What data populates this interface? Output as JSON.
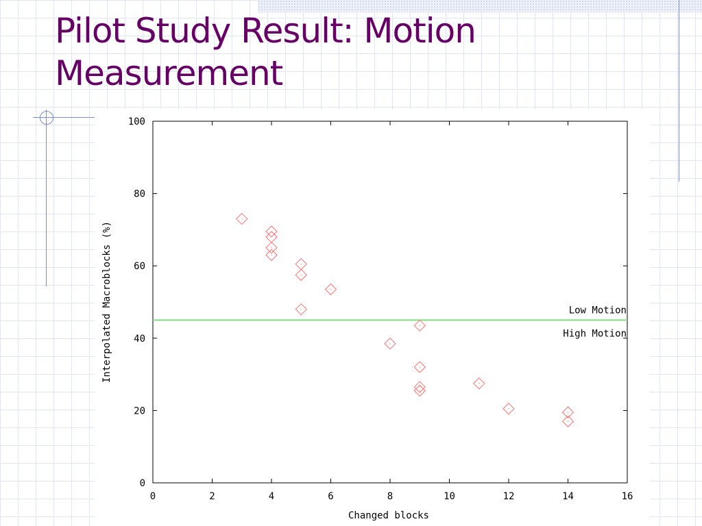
{
  "slide": {
    "title_line1": "Pilot Study Result: Motion",
    "title_line2": "Measurement"
  },
  "chart_data": {
    "type": "scatter",
    "xlabel": "Changed blocks",
    "ylabel": "Interpolated Macroblocks (%)",
    "xlim": [
      0,
      16
    ],
    "ylim": [
      0,
      100
    ],
    "x_ticks": [
      "0",
      "2",
      "4",
      "6",
      "8",
      "10",
      "12",
      "14",
      "16"
    ],
    "y_ticks": [
      "0",
      "20",
      "40",
      "60",
      "80",
      "100"
    ],
    "grid": false,
    "marker": "diamond",
    "marker_color": "#ff7070",
    "points": [
      {
        "x": 3,
        "y": 73
      },
      {
        "x": 4,
        "y": 69.5
      },
      {
        "x": 4,
        "y": 68
      },
      {
        "x": 4,
        "y": 65
      },
      {
        "x": 4,
        "y": 63
      },
      {
        "x": 5,
        "y": 60.5
      },
      {
        "x": 5,
        "y": 57.5
      },
      {
        "x": 5,
        "y": 48
      },
      {
        "x": 6,
        "y": 53.5
      },
      {
        "x": 8,
        "y": 38.5
      },
      {
        "x": 9,
        "y": 43.5
      },
      {
        "x": 9,
        "y": 32
      },
      {
        "x": 9,
        "y": 26.5
      },
      {
        "x": 9,
        "y": 25.5
      },
      {
        "x": 11,
        "y": 27.5
      },
      {
        "x": 12,
        "y": 20.5
      },
      {
        "x": 14,
        "y": 19.5
      },
      {
        "x": 14,
        "y": 17
      }
    ],
    "threshold": {
      "y": 45,
      "color": "#7fe07f",
      "label_above": "Low Motion",
      "label_below": "High Motion"
    }
  }
}
